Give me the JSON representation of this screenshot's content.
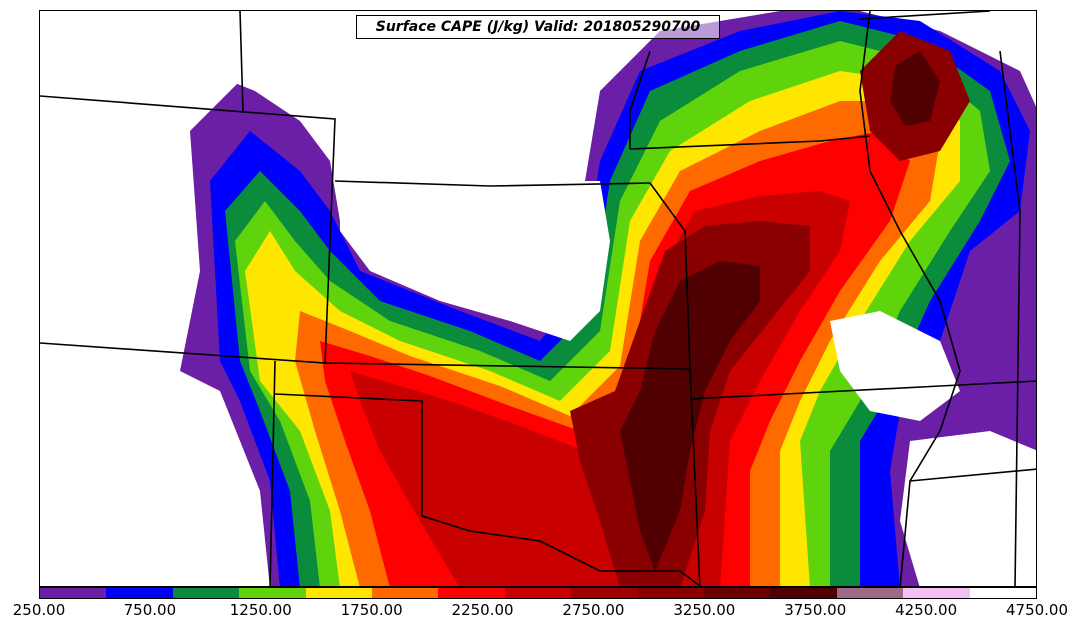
{
  "title": "Surface CAPE (J/kg) Valid: 201805290700",
  "colorbar": {
    "colors": [
      "#6a1fa6",
      "#0000ff",
      "#0a8c3c",
      "#5fd40c",
      "#ffe600",
      "#ff6a00",
      "#ff0000",
      "#c80000",
      "#a00000",
      "#8a0000",
      "#6a0000",
      "#500000",
      "#9a6a86",
      "#f4c2f0",
      "#ffffff"
    ],
    "ticks": [
      "250.00",
      "750.00",
      "1250.00",
      "1750.00",
      "2250.00",
      "2750.00",
      "3250.00",
      "3750.00",
      "4250.00",
      "4750.00"
    ]
  },
  "legend_range": [
    250,
    4750
  ]
}
